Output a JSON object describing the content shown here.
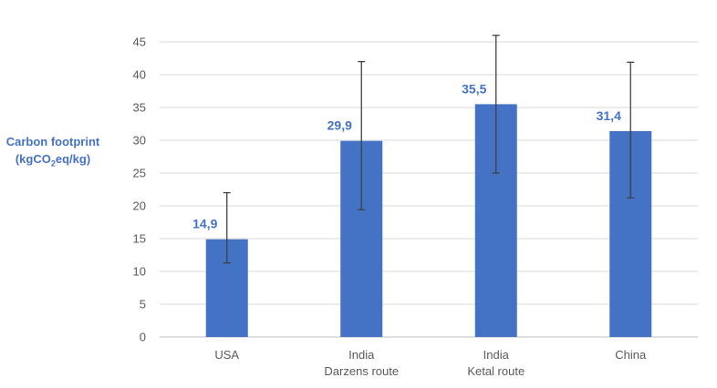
{
  "chart_data": {
    "type": "bar",
    "title": "",
    "xlabel": "",
    "ylabel": {
      "line1": "Carbon footprint",
      "line2_pre": "(kgCO",
      "line2_sub": "2",
      "line2_post": "eq/kg)"
    },
    "ylim": [
      0,
      45
    ],
    "yticks": [
      0,
      5,
      10,
      15,
      20,
      25,
      30,
      35,
      40,
      45
    ],
    "grid": true,
    "categories": [
      [
        "USA"
      ],
      [
        "India",
        "Darzens route"
      ],
      [
        "India",
        "Ketal route"
      ],
      [
        "China"
      ]
    ],
    "values": [
      14.9,
      29.9,
      35.5,
      31.4
    ],
    "value_labels": [
      "14,9",
      "29,9",
      "35,5",
      "31,4"
    ],
    "error_low": [
      11.3,
      19.4,
      25.0,
      21.2
    ],
    "error_high": [
      22.0,
      42.0,
      46.0,
      41.9
    ],
    "colors": {
      "bar": "#4472C4",
      "label": "#4472C4",
      "axis_text": "#595959",
      "grid": "#D9D9D9",
      "error": "#404040"
    }
  }
}
